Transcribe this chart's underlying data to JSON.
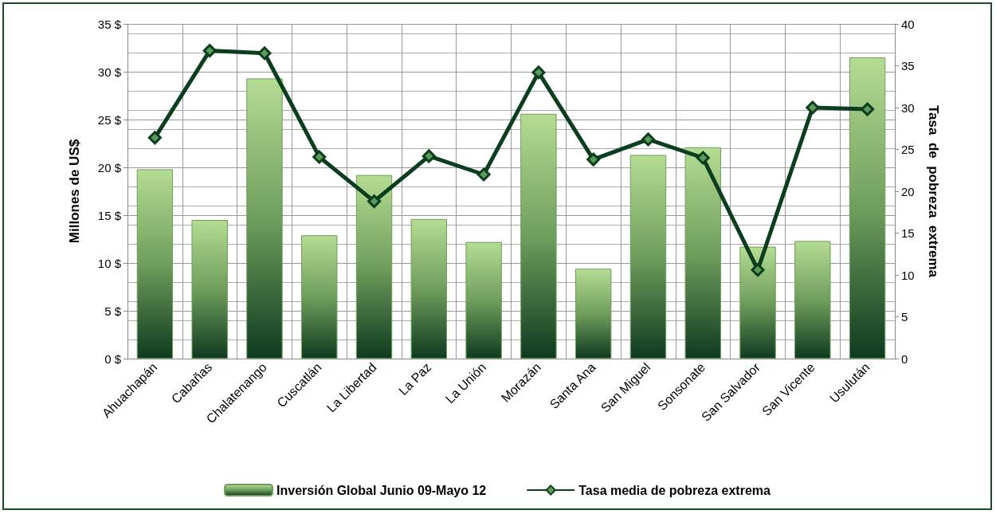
{
  "chart_data": {
    "type": "bar",
    "categories": [
      "Ahuachapán",
      "Cabañas",
      "Chalatenango",
      "Cuscatlán",
      "La Libertad",
      "La Paz",
      "La Unión",
      "Morazán",
      "Santa Ana",
      "San Miguel",
      "Sonsonate",
      "San Salvador",
      "San Vicente",
      "Usulután"
    ],
    "series": [
      {
        "name": "Inversión Global Junio 09-Mayo 12",
        "color": "#6f9e5c",
        "values": [
          19.8,
          14.5,
          29.3,
          12.9,
          19.2,
          14.6,
          12.2,
          25.6,
          9.4,
          21.3,
          22.1,
          11.7,
          12.3,
          31.5
        ]
      },
      {
        "name": "Tasa media de pobreza extrema",
        "type": "line",
        "axis": "y2",
        "color": "#0b3d1f",
        "marker": "diamond",
        "values": [
          26.4,
          36.8,
          36.5,
          24.1,
          18.8,
          24.2,
          22.0,
          34.2,
          23.8,
          26.2,
          24.0,
          10.6,
          30.0,
          29.8
        ]
      }
    ],
    "ylabel": "Millones de US$",
    "y2label": "Tasa  de  pobreza  extrema",
    "ylim": [
      0,
      35
    ],
    "yticks": [
      {
        "value": 0,
        "label": "0 $"
      },
      {
        "value": 5,
        "label": "5 $"
      },
      {
        "value": 10,
        "label": "10 $"
      },
      {
        "value": 15,
        "label": "15 $"
      },
      {
        "value": 20,
        "label": "20 $"
      },
      {
        "value": 25,
        "label": "25 $"
      },
      {
        "value": 30,
        "label": "30 $"
      },
      {
        "value": 35,
        "label": "35 $"
      }
    ],
    "y2lim": [
      0,
      40
    ],
    "y2ticks": [
      0,
      5,
      10,
      15,
      20,
      25,
      30,
      35,
      40
    ],
    "grid": true,
    "legend": "bottom"
  }
}
